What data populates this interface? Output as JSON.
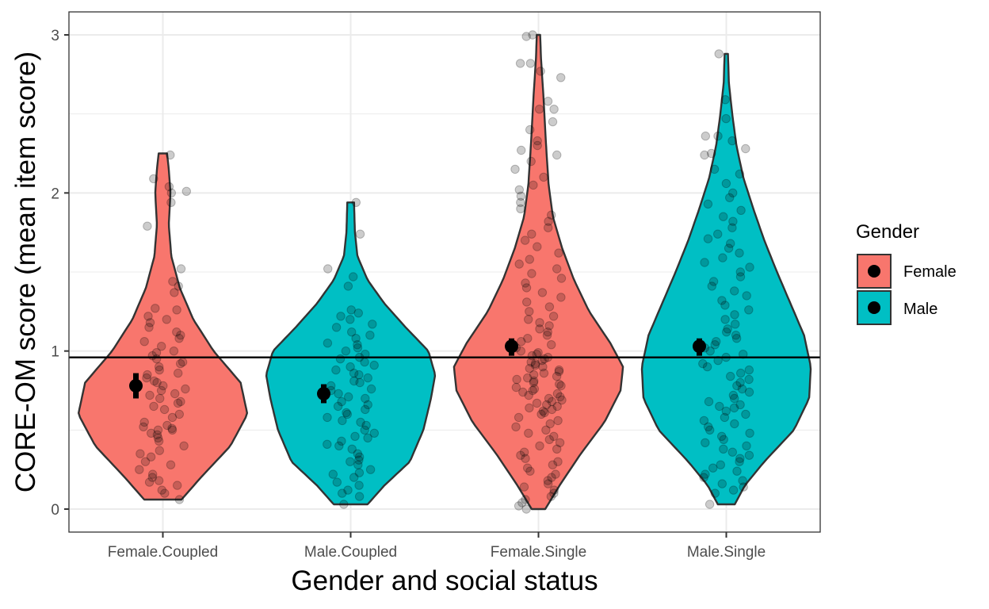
{
  "chart_data": {
    "type": "violin",
    "title": "",
    "xlabel": "Gender and social status",
    "ylabel": "CORE-OM score (mean item score)",
    "ylim": [
      -0.15,
      3.15
    ],
    "yticks": [
      0,
      1,
      2,
      3
    ],
    "ytick_labels": [
      "0",
      "1",
      "2",
      "3"
    ],
    "grid": true,
    "reference_line": {
      "y": 0.96,
      "color": "#000000"
    },
    "categories": [
      "Female.Coupled",
      "Male.Coupled",
      "Female.Single",
      "Male.Single"
    ],
    "legend": {
      "title": "Gender",
      "position": "right",
      "entries": [
        {
          "label": "Female",
          "color": "#F8766D"
        },
        {
          "label": "Male",
          "color": "#00BFC4"
        }
      ]
    },
    "groups": [
      {
        "category": "Female.Coupled",
        "gender": "Female",
        "color": "#F8766D",
        "min": 0.06,
        "max": 2.25,
        "mean": 0.78,
        "ci": [
          0.7,
          0.86
        ],
        "density_profile": [
          [
            0.06,
            0.22
          ],
          [
            0.2,
            0.45
          ],
          [
            0.4,
            0.8
          ],
          [
            0.6,
            1.0
          ],
          [
            0.8,
            0.92
          ],
          [
            1.0,
            0.6
          ],
          [
            1.2,
            0.36
          ],
          [
            1.4,
            0.2
          ],
          [
            1.6,
            0.1
          ],
          [
            1.8,
            0.07
          ],
          [
            2.0,
            0.09
          ],
          [
            2.15,
            0.07
          ],
          [
            2.25,
            0.05
          ]
        ],
        "points": [
          2.24,
          2.09,
          2.04,
          2.01,
          2.0,
          1.94,
          1.79,
          1.52,
          1.44,
          1.41,
          1.37,
          1.27,
          1.26,
          1.22,
          1.2,
          1.18,
          1.15,
          1.12,
          1.1,
          1.08,
          1.06,
          1.03,
          1.0,
          0.99,
          0.97,
          0.95,
          0.93,
          0.92,
          0.9,
          0.88,
          0.86,
          0.85,
          0.83,
          0.81,
          0.8,
          0.78,
          0.76,
          0.75,
          0.73,
          0.72,
          0.7,
          0.68,
          0.67,
          0.65,
          0.63,
          0.6,
          0.58,
          0.55,
          0.53,
          0.52,
          0.51,
          0.5,
          0.5,
          0.48,
          0.47,
          0.45,
          0.43,
          0.4,
          0.37,
          0.35,
          0.33,
          0.3,
          0.28,
          0.25,
          0.22,
          0.2,
          0.18,
          0.17,
          0.15,
          0.12,
          0.1,
          0.06
        ]
      },
      {
        "category": "Male.Coupled",
        "gender": "Male",
        "color": "#00BFC4",
        "min": 0.03,
        "max": 1.94,
        "mean": 0.73,
        "ci": [
          0.67,
          0.79
        ],
        "density_profile": [
          [
            0.03,
            0.2
          ],
          [
            0.15,
            0.4
          ],
          [
            0.3,
            0.7
          ],
          [
            0.5,
            0.86
          ],
          [
            0.7,
            0.95
          ],
          [
            0.85,
            1.0
          ],
          [
            1.0,
            0.92
          ],
          [
            1.15,
            0.65
          ],
          [
            1.3,
            0.4
          ],
          [
            1.45,
            0.2
          ],
          [
            1.6,
            0.08
          ],
          [
            1.75,
            0.05
          ],
          [
            1.94,
            0.04
          ]
        ],
        "points": [
          1.94,
          1.74,
          1.52,
          1.47,
          1.41,
          1.26,
          1.24,
          1.22,
          1.2,
          1.17,
          1.15,
          1.12,
          1.1,
          1.08,
          1.05,
          1.04,
          1.02,
          1.0,
          0.98,
          0.96,
          0.95,
          0.93,
          0.91,
          0.9,
          0.88,
          0.86,
          0.85,
          0.83,
          0.81,
          0.8,
          0.78,
          0.76,
          0.75,
          0.73,
          0.71,
          0.7,
          0.68,
          0.66,
          0.65,
          0.63,
          0.61,
          0.6,
          0.58,
          0.56,
          0.55,
          0.53,
          0.5,
          0.48,
          0.46,
          0.45,
          0.43,
          0.41,
          0.4,
          0.38,
          0.35,
          0.33,
          0.31,
          0.3,
          0.28,
          0.25,
          0.23,
          0.22,
          0.2,
          0.17,
          0.15,
          0.12,
          0.1,
          0.08,
          0.03
        ]
      },
      {
        "category": "Female.Single",
        "gender": "Female",
        "color": "#F8766D",
        "min": 0.0,
        "max": 3.0,
        "mean": 1.03,
        "ci": [
          0.97,
          1.08
        ],
        "density_profile": [
          [
            0.0,
            0.08
          ],
          [
            0.15,
            0.25
          ],
          [
            0.35,
            0.5
          ],
          [
            0.55,
            0.78
          ],
          [
            0.75,
            0.97
          ],
          [
            0.9,
            1.0
          ],
          [
            1.05,
            0.85
          ],
          [
            1.25,
            0.6
          ],
          [
            1.45,
            0.42
          ],
          [
            1.65,
            0.28
          ],
          [
            1.85,
            0.17
          ],
          [
            2.05,
            0.12
          ],
          [
            2.3,
            0.09
          ],
          [
            2.6,
            0.06
          ],
          [
            2.85,
            0.03
          ],
          [
            3.0,
            0.02
          ]
        ],
        "points": [
          3.0,
          2.99,
          2.82,
          2.82,
          2.77,
          2.73,
          2.58,
          2.53,
          2.53,
          2.45,
          2.4,
          2.33,
          2.3,
          2.27,
          2.24,
          2.2,
          2.15,
          2.1,
          2.05,
          2.02,
          1.98,
          1.94,
          1.9,
          1.86,
          1.82,
          1.78,
          1.74,
          1.7,
          1.66,
          1.62,
          1.58,
          1.55,
          1.52,
          1.49,
          1.46,
          1.43,
          1.4,
          1.37,
          1.34,
          1.31,
          1.28,
          1.25,
          1.22,
          1.2,
          1.18,
          1.16,
          1.14,
          1.12,
          1.1,
          1.08,
          1.06,
          1.04,
          1.02,
          1.0,
          0.99,
          0.98,
          0.97,
          0.96,
          0.95,
          0.94,
          0.93,
          0.92,
          0.91,
          0.9,
          0.89,
          0.88,
          0.87,
          0.86,
          0.85,
          0.84,
          0.83,
          0.82,
          0.81,
          0.8,
          0.79,
          0.78,
          0.77,
          0.76,
          0.75,
          0.74,
          0.73,
          0.72,
          0.71,
          0.7,
          0.69,
          0.68,
          0.67,
          0.66,
          0.65,
          0.64,
          0.63,
          0.62,
          0.61,
          0.6,
          0.58,
          0.56,
          0.54,
          0.52,
          0.5,
          0.48,
          0.46,
          0.44,
          0.42,
          0.4,
          0.38,
          0.36,
          0.34,
          0.32,
          0.3,
          0.28,
          0.26,
          0.24,
          0.22,
          0.2,
          0.18,
          0.16,
          0.14,
          0.12,
          0.1,
          0.08,
          0.06,
          0.04,
          0.02,
          0.0
        ]
      },
      {
        "category": "Male.Single",
        "gender": "Male",
        "color": "#00BFC4",
        "min": 0.03,
        "max": 2.88,
        "mean": 1.03,
        "ci": [
          0.97,
          1.08
        ],
        "density_profile": [
          [
            0.03,
            0.1
          ],
          [
            0.15,
            0.22
          ],
          [
            0.3,
            0.45
          ],
          [
            0.5,
            0.8
          ],
          [
            0.7,
            0.98
          ],
          [
            0.9,
            1.0
          ],
          [
            1.1,
            0.92
          ],
          [
            1.3,
            0.76
          ],
          [
            1.5,
            0.6
          ],
          [
            1.7,
            0.45
          ],
          [
            1.9,
            0.32
          ],
          [
            2.1,
            0.2
          ],
          [
            2.3,
            0.12
          ],
          [
            2.5,
            0.07
          ],
          [
            2.7,
            0.03
          ],
          [
            2.88,
            0.02
          ]
        ],
        "points": [
          2.88,
          2.59,
          2.47,
          2.36,
          2.36,
          2.33,
          2.28,
          2.25,
          2.24,
          2.15,
          2.12,
          2.06,
          2.0,
          1.97,
          1.93,
          1.89,
          1.85,
          1.82,
          1.78,
          1.74,
          1.71,
          1.68,
          1.65,
          1.62,
          1.59,
          1.56,
          1.53,
          1.5,
          1.47,
          1.44,
          1.41,
          1.38,
          1.35,
          1.32,
          1.29,
          1.26,
          1.23,
          1.2,
          1.17,
          1.14,
          1.12,
          1.1,
          1.08,
          1.06,
          1.04,
          1.02,
          1.0,
          0.98,
          0.96,
          0.94,
          0.92,
          0.9,
          0.88,
          0.86,
          0.84,
          0.82,
          0.8,
          0.78,
          0.76,
          0.74,
          0.72,
          0.7,
          0.68,
          0.66,
          0.65,
          0.64,
          0.62,
          0.6,
          0.58,
          0.56,
          0.54,
          0.52,
          0.5,
          0.48,
          0.46,
          0.44,
          0.42,
          0.4,
          0.38,
          0.36,
          0.34,
          0.32,
          0.3,
          0.28,
          0.26,
          0.24,
          0.22,
          0.2,
          0.18,
          0.16,
          0.14,
          0.12,
          0.1,
          0.03
        ]
      }
    ]
  }
}
